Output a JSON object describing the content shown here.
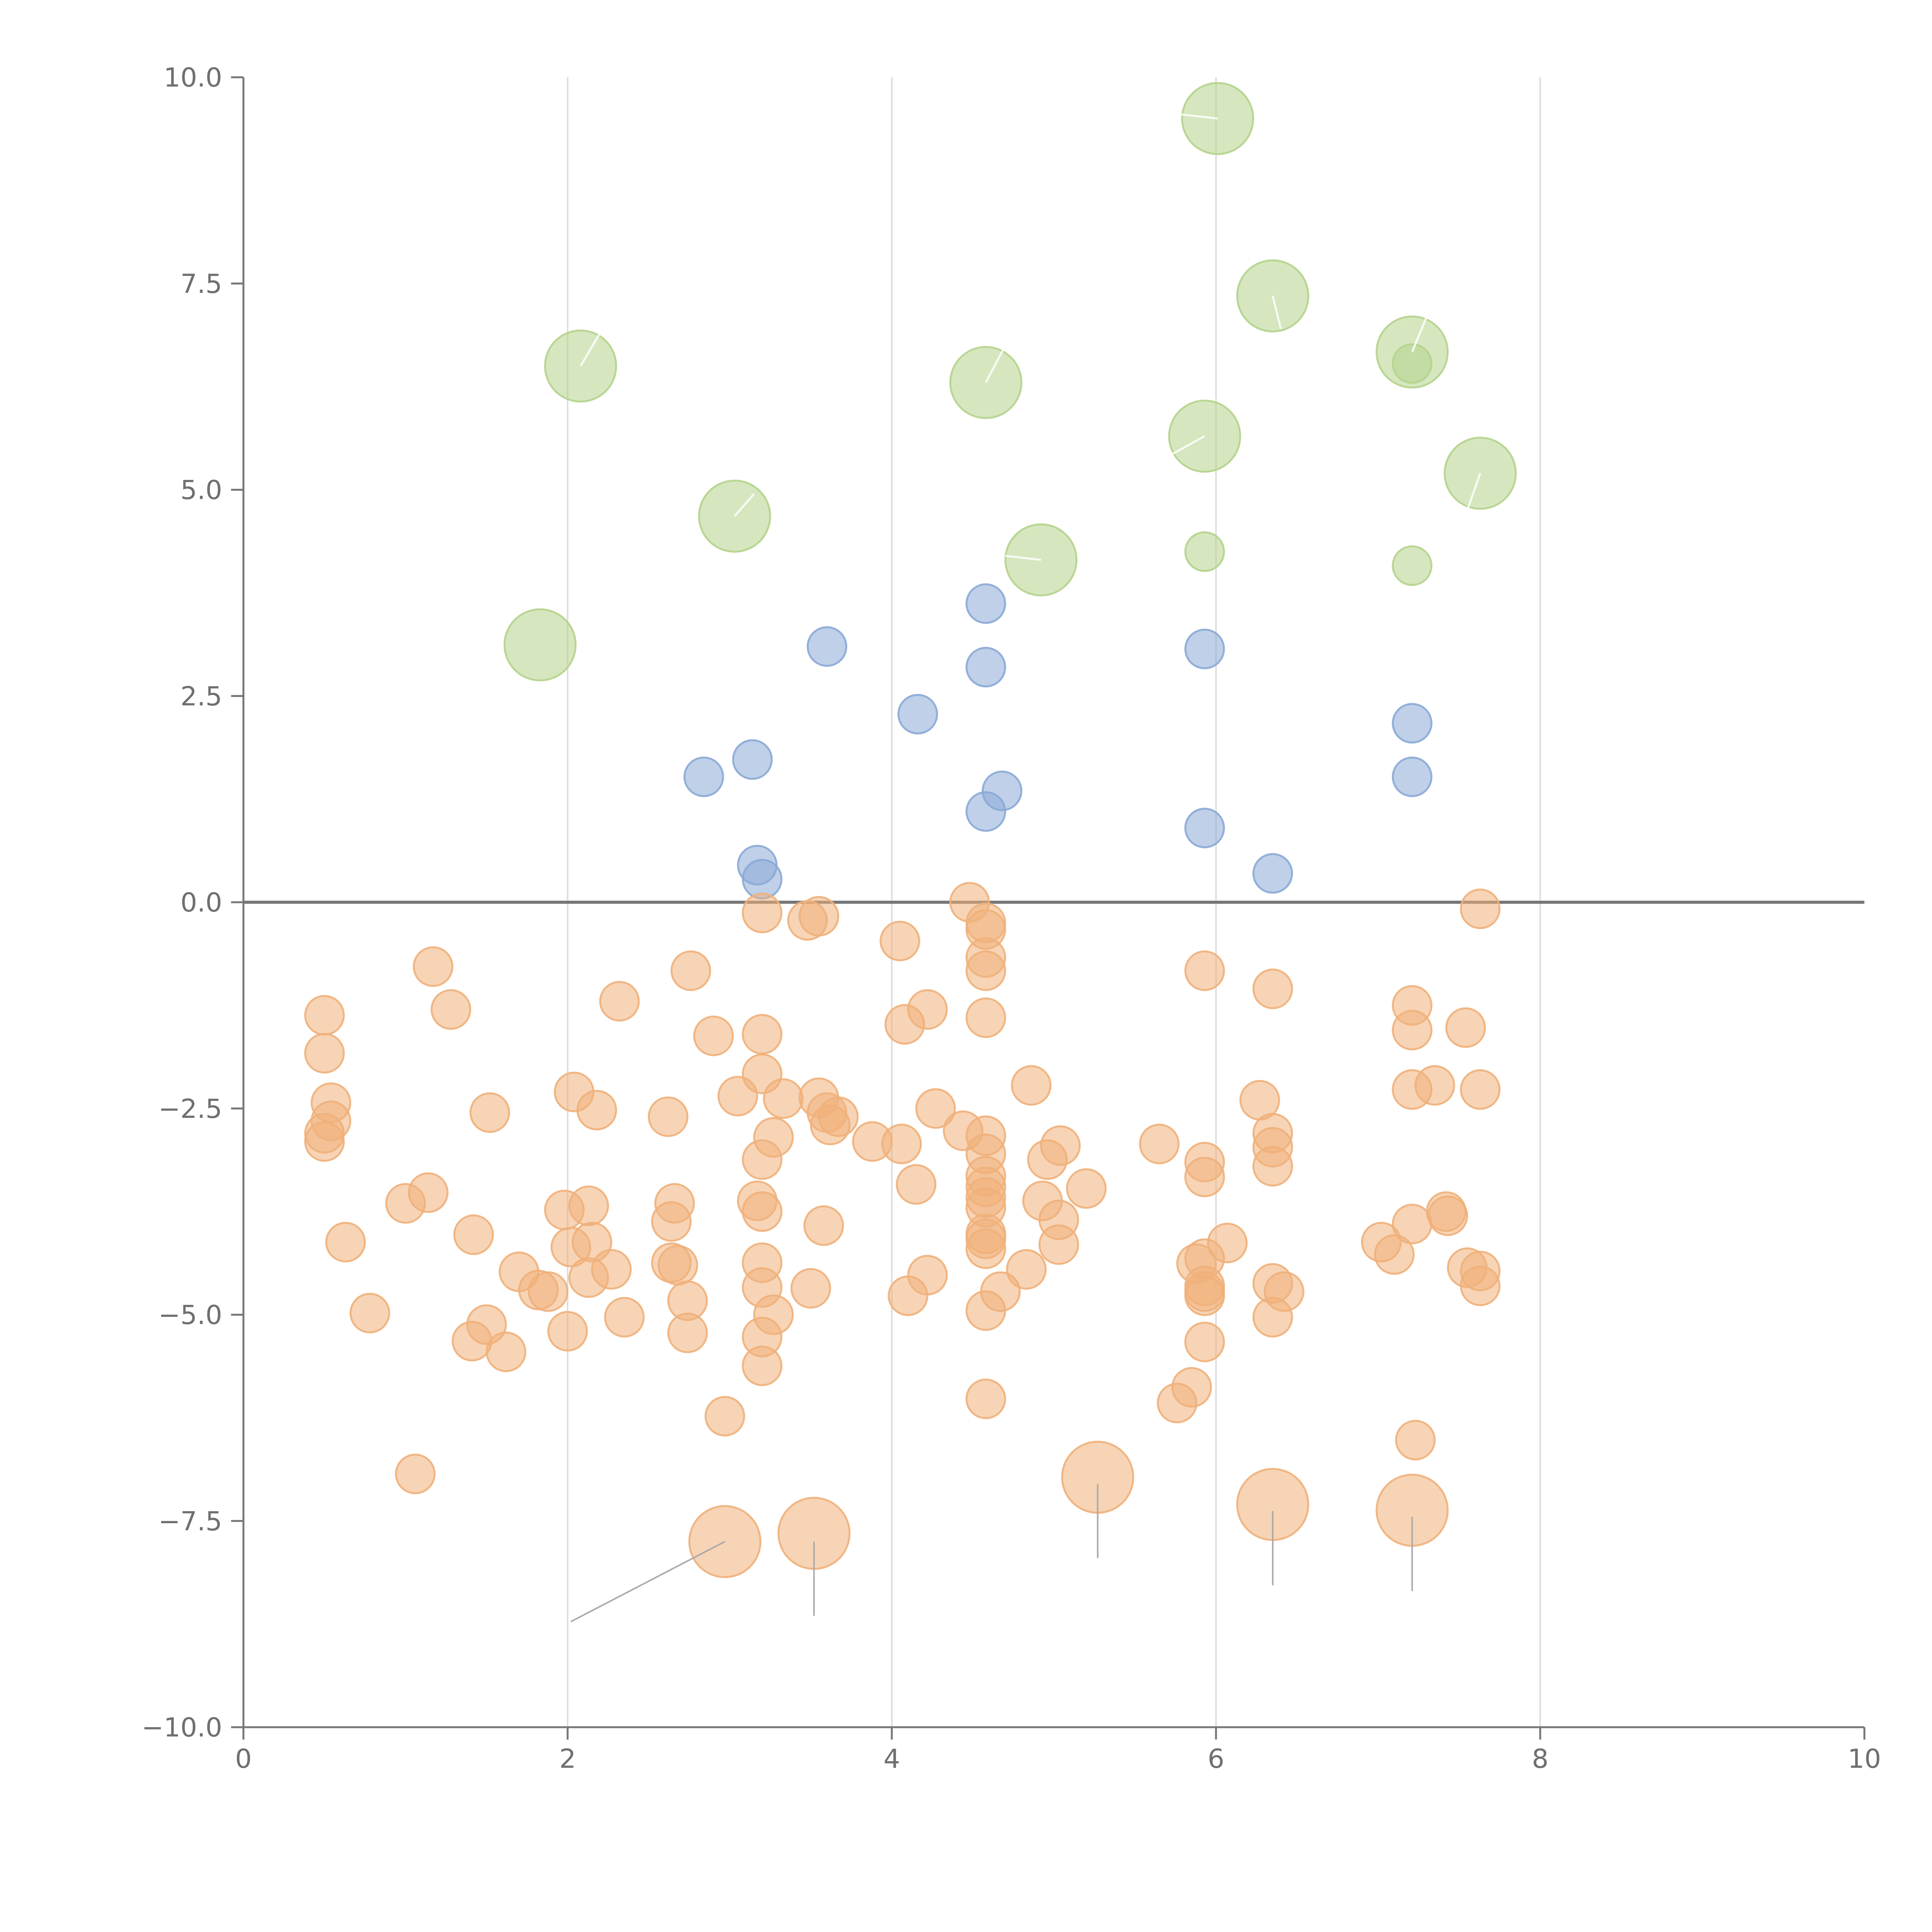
{
  "chart_data": {
    "type": "scatter",
    "title": "",
    "xlabel": "",
    "ylabel": "",
    "xlim": [
      0,
      10
    ],
    "ylim": [
      -10,
      10
    ],
    "x_ticks": [
      "0",
      "2",
      "4",
      "6",
      "8",
      "10"
    ],
    "y_ticks": [
      "10.0",
      "7.5",
      "5.0",
      "2.5",
      "0.0",
      "−2.5",
      "−5.0",
      "−7.5",
      "−10.0"
    ],
    "x_tick_values": [
      0,
      2,
      4,
      6,
      8,
      10
    ],
    "y_tick_values": [
      10,
      7.5,
      5,
      2.5,
      0,
      -2.5,
      -5,
      -7.5,
      -10
    ],
    "vertical_grid": [
      2,
      4,
      6,
      8
    ],
    "zero_line": 0,
    "marker_sizes": {
      "small": 1,
      "medium": 2,
      "large": 3
    },
    "colors": {
      "green": "#b5d38c",
      "blue": "#8aa9d6",
      "orange": "#f0b07a"
    },
    "series": [
      {
        "color_key": "green",
        "size": "large",
        "points": [
          [
            6.01,
            9.5
          ],
          [
            2.08,
            6.5
          ],
          [
            4.58,
            6.3
          ],
          [
            6.35,
            7.35
          ],
          [
            7.21,
            6.67
          ],
          [
            5.93,
            5.65
          ],
          [
            7.63,
            5.2
          ],
          [
            3.03,
            4.68
          ],
          [
            4.92,
            4.15
          ],
          [
            1.83,
            3.12
          ]
        ]
      },
      {
        "color_key": "green",
        "size": "small",
        "points": [
          [
            5.93,
            4.25
          ],
          [
            7.21,
            4.08
          ],
          [
            7.21,
            6.53
          ]
        ]
      },
      {
        "color_key": "blue",
        "size": "small",
        "points": [
          [
            4.58,
            3.62
          ],
          [
            3.6,
            3.1
          ],
          [
            5.93,
            3.07
          ],
          [
            4.58,
            2.85
          ],
          [
            4.16,
            2.28
          ],
          [
            7.21,
            2.17
          ],
          [
            3.14,
            1.73
          ],
          [
            2.84,
            1.52
          ],
          [
            7.21,
            1.52
          ],
          [
            4.68,
            1.35
          ],
          [
            4.58,
            1.1
          ],
          [
            5.93,
            0.9
          ],
          [
            3.17,
            0.45
          ],
          [
            6.35,
            0.35
          ],
          [
            3.2,
            0.28
          ]
        ]
      },
      {
        "color_key": "orange",
        "size": "small",
        "points": [
          [
            4.48,
            0.0
          ],
          [
            3.2,
            -0.13
          ],
          [
            3.55,
            -0.17
          ],
          [
            3.48,
            -0.22
          ],
          [
            7.63,
            -0.08
          ],
          [
            4.58,
            -0.25
          ],
          [
            4.58,
            -0.33
          ],
          [
            4.05,
            -0.47
          ],
          [
            4.58,
            -0.67
          ],
          [
            1.17,
            -0.78
          ],
          [
            2.76,
            -0.83
          ],
          [
            4.58,
            -0.83
          ],
          [
            5.93,
            -0.83
          ],
          [
            6.35,
            -1.05
          ],
          [
            2.32,
            -1.2
          ],
          [
            7.21,
            -1.25
          ],
          [
            1.28,
            -1.3
          ],
          [
            4.22,
            -1.3
          ],
          [
            0.5,
            -1.37
          ],
          [
            4.58,
            -1.4
          ],
          [
            4.08,
            -1.48
          ],
          [
            7.54,
            -1.52
          ],
          [
            7.21,
            -1.55
          ],
          [
            2.9,
            -1.62
          ],
          [
            3.2,
            -1.6
          ],
          [
            0.5,
            -1.83
          ],
          [
            3.2,
            -2.08
          ],
          [
            4.86,
            -2.22
          ],
          [
            7.35,
            -2.22
          ],
          [
            7.21,
            -2.27
          ],
          [
            7.63,
            -2.27
          ],
          [
            2.04,
            -2.3
          ],
          [
            3.05,
            -2.35
          ],
          [
            3.33,
            -2.38
          ],
          [
            3.55,
            -2.37
          ],
          [
            6.27,
            -2.4
          ],
          [
            0.54,
            -2.43
          ],
          [
            2.18,
            -2.52
          ],
          [
            1.52,
            -2.55
          ],
          [
            4.27,
            -2.5
          ],
          [
            3.6,
            -2.55
          ],
          [
            2.62,
            -2.6
          ],
          [
            3.67,
            -2.6
          ],
          [
            0.54,
            -2.65
          ],
          [
            3.62,
            -2.7
          ],
          [
            0.5,
            -2.8
          ],
          [
            4.44,
            -2.77
          ],
          [
            6.35,
            -2.8
          ],
          [
            4.58,
            -2.83
          ],
          [
            3.27,
            -2.85
          ],
          [
            0.5,
            -2.9
          ],
          [
            3.88,
            -2.9
          ],
          [
            4.06,
            -2.93
          ],
          [
            5.65,
            -2.93
          ],
          [
            5.04,
            -2.95
          ],
          [
            6.35,
            -2.97
          ],
          [
            4.58,
            -3.05
          ],
          [
            3.2,
            -3.12
          ],
          [
            4.96,
            -3.12
          ],
          [
            5.93,
            -3.15
          ],
          [
            6.35,
            -3.2
          ],
          [
            4.58,
            -3.32
          ],
          [
            5.93,
            -3.33
          ],
          [
            4.15,
            -3.42
          ],
          [
            4.58,
            -3.45
          ],
          [
            5.2,
            -3.47
          ],
          [
            1.14,
            -3.52
          ],
          [
            4.58,
            -3.58
          ],
          [
            3.17,
            -3.62
          ],
          [
            4.93,
            -3.62
          ],
          [
            1.0,
            -3.65
          ],
          [
            2.66,
            -3.65
          ],
          [
            2.13,
            -3.68
          ],
          [
            4.58,
            -3.7
          ],
          [
            1.98,
            -3.73
          ],
          [
            3.2,
            -3.75
          ],
          [
            7.42,
            -3.75
          ],
          [
            7.43,
            -3.8
          ],
          [
            2.64,
            -3.87
          ],
          [
            7.21,
            -3.9
          ],
          [
            5.03,
            -3.85
          ],
          [
            3.58,
            -3.92
          ],
          [
            1.42,
            -4.03
          ],
          [
            4.58,
            -4.02
          ],
          [
            4.58,
            -4.08
          ],
          [
            0.63,
            -4.12
          ],
          [
            2.15,
            -4.12
          ],
          [
            7.02,
            -4.12
          ],
          [
            6.07,
            -4.13
          ],
          [
            5.03,
            -4.15
          ],
          [
            2.02,
            -4.18
          ],
          [
            4.58,
            -4.2
          ],
          [
            7.1,
            -4.27
          ],
          [
            5.93,
            -4.32
          ],
          [
            2.64,
            -4.37
          ],
          [
            3.2,
            -4.37
          ],
          [
            5.88,
            -4.38
          ],
          [
            2.68,
            -4.4
          ],
          [
            7.55,
            -4.43
          ],
          [
            4.83,
            -4.45
          ],
          [
            2.27,
            -4.45
          ],
          [
            1.7,
            -4.48
          ],
          [
            7.63,
            -4.47
          ],
          [
            2.13,
            -4.55
          ],
          [
            4.22,
            -4.52
          ],
          [
            6.35,
            -4.62
          ],
          [
            3.2,
            -4.67
          ],
          [
            7.63,
            -4.65
          ],
          [
            3.5,
            -4.68
          ],
          [
            5.93,
            -4.65
          ],
          [
            1.82,
            -4.7
          ],
          [
            5.93,
            -4.72
          ],
          [
            1.88,
            -4.72
          ],
          [
            6.42,
            -4.72
          ],
          [
            4.67,
            -4.72
          ],
          [
            4.1,
            -4.77
          ],
          [
            5.93,
            -4.77
          ],
          [
            2.74,
            -4.83
          ],
          [
            4.58,
            -4.95
          ],
          [
            0.78,
            -4.98
          ],
          [
            3.27,
            -5.0
          ],
          [
            2.35,
            -5.03
          ],
          [
            6.35,
            -5.03
          ],
          [
            1.5,
            -5.12
          ],
          [
            2.0,
            -5.2
          ],
          [
            2.74,
            -5.22
          ],
          [
            3.2,
            -5.27
          ],
          [
            1.41,
            -5.32
          ],
          [
            5.93,
            -5.33
          ],
          [
            1.62,
            -5.45
          ],
          [
            3.2,
            -5.62
          ],
          [
            5.85,
            -5.88
          ],
          [
            4.58,
            -6.02
          ],
          [
            5.76,
            -6.07
          ],
          [
            2.97,
            -6.23
          ],
          [
            7.23,
            -6.52
          ],
          [
            1.06,
            -6.93
          ]
        ]
      },
      {
        "color_key": "orange",
        "size": "large",
        "points": [
          [
            5.27,
            -6.97
          ],
          [
            6.35,
            -7.3
          ],
          [
            7.21,
            -7.37
          ],
          [
            2.97,
            -7.75
          ],
          [
            3.52,
            -7.65
          ]
        ]
      }
    ],
    "leader_lines": [
      {
        "style": "gray",
        "from": [
          2.97,
          -7.75
        ],
        "to": [
          2.02,
          -8.72
        ]
      },
      {
        "style": "gray",
        "from": [
          3.52,
          -7.75
        ],
        "to": [
          3.52,
          -8.65
        ]
      },
      {
        "style": "gray",
        "from": [
          5.27,
          -7.05
        ],
        "to": [
          5.27,
          -7.95
        ]
      },
      {
        "style": "gray",
        "from": [
          6.35,
          -7.38
        ],
        "to": [
          6.35,
          -8.28
        ]
      },
      {
        "style": "gray",
        "from": [
          7.21,
          -7.45
        ],
        "to": [
          7.21,
          -8.35
        ]
      },
      {
        "style": "light",
        "from": [
          2.08,
          6.5
        ],
        "to": [
          2.2,
          6.9
        ]
      },
      {
        "style": "light",
        "from": [
          4.58,
          6.3
        ],
        "to": [
          4.7,
          6.75
        ]
      },
      {
        "style": "light",
        "from": [
          6.35,
          7.35
        ],
        "to": [
          6.4,
          6.95
        ]
      },
      {
        "style": "light",
        "from": [
          7.21,
          6.67
        ],
        "to": [
          7.3,
          7.1
        ]
      },
      {
        "style": "light",
        "from": [
          5.93,
          5.65
        ],
        "to": [
          5.7,
          5.4
        ]
      },
      {
        "style": "light",
        "from": [
          7.63,
          5.2
        ],
        "to": [
          7.55,
          4.75
        ]
      },
      {
        "style": "light",
        "from": [
          3.03,
          4.68
        ],
        "to": [
          3.15,
          4.95
        ]
      },
      {
        "style": "light",
        "from": [
          4.92,
          4.15
        ],
        "to": [
          4.7,
          4.2
        ]
      },
      {
        "style": "light",
        "from": [
          6.01,
          9.5
        ],
        "to": [
          5.78,
          9.55
        ]
      }
    ]
  }
}
